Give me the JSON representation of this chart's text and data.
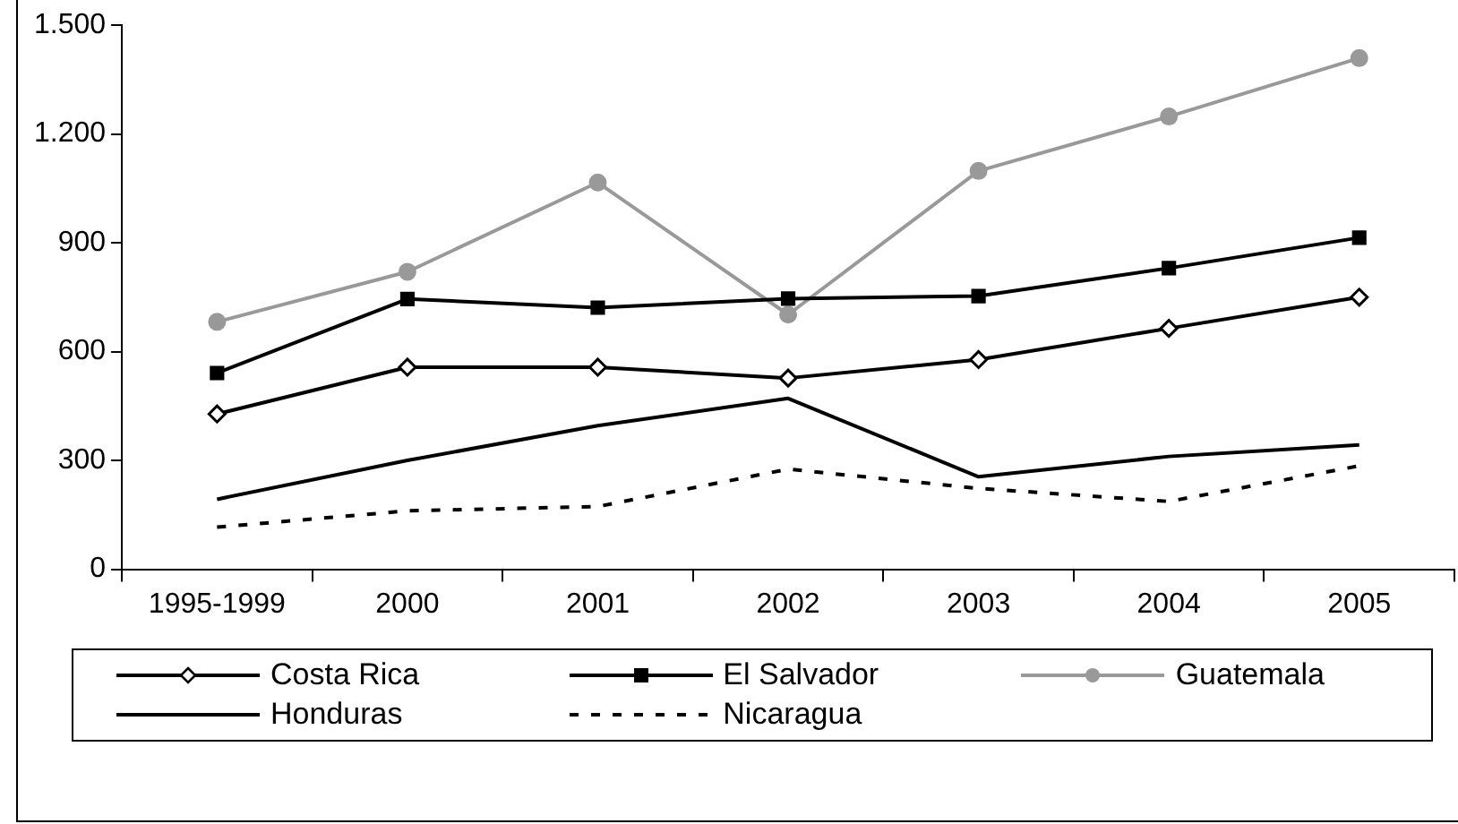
{
  "chart_data": {
    "type": "line",
    "categories": [
      "1995-1999",
      "2000",
      "2001",
      "2002",
      "2003",
      "2004",
      "2005"
    ],
    "series": [
      {
        "name": "Costa Rica",
        "color": "#000000",
        "marker": "diamond",
        "line_style": "solid",
        "values": [
          428,
          557,
          557,
          527,
          578,
          664,
          750
        ]
      },
      {
        "name": "El Salvador",
        "color": "#000000",
        "marker": "square",
        "line_style": "solid",
        "values": [
          541,
          745,
          721,
          746,
          753,
          830,
          914
        ]
      },
      {
        "name": "Guatemala",
        "color": "#999999",
        "marker": "circle",
        "line_style": "solid",
        "values": [
          682,
          820,
          1066,
          702,
          1098,
          1248,
          1409
        ]
      },
      {
        "name": "Honduras",
        "color": "#000000",
        "marker": "none",
        "line_style": "solid",
        "values": [
          193,
          300,
          396,
          471,
          255,
          311,
          343
        ]
      },
      {
        "name": "Nicaragua",
        "color": "#000000",
        "marker": "none",
        "line_style": "dashed",
        "values": [
          116,
          161,
          173,
          276,
          223,
          187,
          285
        ]
      }
    ],
    "ylim": [
      0,
      1500
    ],
    "yticks": [
      0,
      300,
      600,
      900,
      {
        "value": 1200,
        "label": "1.200"
      },
      {
        "value": 1500,
        "label": "1.500"
      }
    ],
    "grid": false,
    "legend": "bottom"
  }
}
